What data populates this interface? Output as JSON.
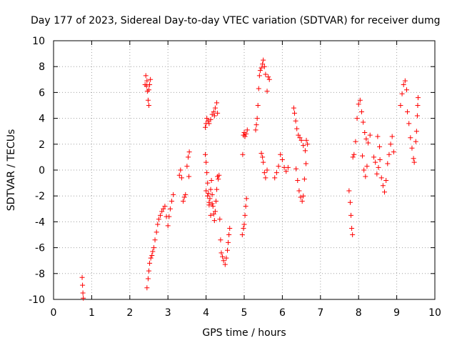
{
  "chart_data": {
    "type": "scatter",
    "title": "Day 177 of 2023, Sidereal Day-to-day VTEC variation (SDTVAR) for receiver dumg",
    "xlabel": "GPS time / hours",
    "ylabel": "SDTVAR / TECUs",
    "xlim": [
      0,
      10
    ],
    "ylim": [
      -10,
      10
    ],
    "xticks": [
      0,
      1,
      2,
      3,
      4,
      5,
      6,
      7,
      8,
      9,
      10
    ],
    "yticks": [
      -10,
      -8,
      -6,
      -4,
      -2,
      0,
      2,
      4,
      6,
      8,
      10
    ],
    "grid": true,
    "marker": "+",
    "marker_color": "#ff0000",
    "series": [
      {
        "name": "SDTVAR",
        "points": [
          [
            0.75,
            -8.3
          ],
          [
            0.76,
            -8.9
          ],
          [
            0.77,
            -9.5
          ],
          [
            0.78,
            -9.9
          ],
          [
            2.4,
            6.6
          ],
          [
            2.42,
            7.3
          ],
          [
            2.44,
            6.5
          ],
          [
            2.46,
            6.1
          ],
          [
            2.48,
            5.4
          ],
          [
            2.5,
            5.0
          ],
          [
            2.52,
            6.6
          ],
          [
            2.54,
            7.0
          ],
          [
            2.5,
            6.2
          ],
          [
            2.45,
            6.9
          ],
          [
            2.45,
            -9.1
          ],
          [
            2.48,
            -8.4
          ],
          [
            2.5,
            -7.8
          ],
          [
            2.52,
            -7.2
          ],
          [
            2.55,
            -6.8
          ],
          [
            2.58,
            -6.6
          ],
          [
            2.6,
            -6.3
          ],
          [
            2.63,
            -6.0
          ],
          [
            2.66,
            -5.4
          ],
          [
            2.7,
            -4.8
          ],
          [
            2.73,
            -4.2
          ],
          [
            2.76,
            -3.8
          ],
          [
            2.8,
            -3.5
          ],
          [
            2.84,
            -3.2
          ],
          [
            2.88,
            -3.0
          ],
          [
            2.92,
            -2.8
          ],
          [
            2.96,
            -3.6
          ],
          [
            3.0,
            -4.3
          ],
          [
            3.03,
            -3.6
          ],
          [
            3.06,
            -3.0
          ],
          [
            3.1,
            -2.4
          ],
          [
            3.14,
            -1.9
          ],
          [
            3.3,
            -0.4
          ],
          [
            3.33,
            0.0
          ],
          [
            3.36,
            -0.6
          ],
          [
            3.4,
            -2.4
          ],
          [
            3.43,
            -2.1
          ],
          [
            3.46,
            -1.9
          ],
          [
            3.5,
            0.3
          ],
          [
            3.53,
            1.0
          ],
          [
            3.56,
            1.4
          ],
          [
            3.55,
            -0.5
          ],
          [
            3.98,
            3.3
          ],
          [
            4.0,
            3.6
          ],
          [
            4.02,
            4.0
          ],
          [
            4.05,
            3.8
          ],
          [
            4.08,
            3.6
          ],
          [
            4.12,
            3.9
          ],
          [
            4.16,
            4.3
          ],
          [
            4.2,
            4.5
          ],
          [
            4.24,
            4.8
          ],
          [
            4.28,
            5.2
          ],
          [
            4.3,
            4.4
          ],
          [
            4.22,
            4.2
          ],
          [
            3.98,
            1.2
          ],
          [
            4.0,
            0.6
          ],
          [
            4.02,
            -0.2
          ],
          [
            4.04,
            -1.0
          ],
          [
            4.06,
            -1.8
          ],
          [
            4.08,
            -2.5
          ],
          [
            4.1,
            -2.2
          ],
          [
            4.12,
            -1.5
          ],
          [
            4.14,
            -0.8
          ],
          [
            4.16,
            -1.9
          ],
          [
            4.18,
            -2.8
          ],
          [
            4.2,
            -3.4
          ],
          [
            4.22,
            -3.9
          ],
          [
            4.24,
            -3.2
          ],
          [
            4.26,
            -2.4
          ],
          [
            4.28,
            -1.5
          ],
          [
            4.3,
            -0.5
          ],
          [
            4.32,
            -0.7
          ],
          [
            4.34,
            -0.4
          ],
          [
            4.0,
            -1.6
          ],
          [
            4.04,
            -2.0
          ],
          [
            4.08,
            -2.7
          ],
          [
            4.12,
            -3.5
          ],
          [
            4.16,
            -2.6
          ],
          [
            4.36,
            -3.8
          ],
          [
            4.38,
            -5.4
          ],
          [
            4.4,
            -6.4
          ],
          [
            4.43,
            -6.7
          ],
          [
            4.46,
            -7.0
          ],
          [
            4.5,
            -7.3
          ],
          [
            4.53,
            -6.8
          ],
          [
            4.56,
            -6.2
          ],
          [
            4.58,
            -5.6
          ],
          [
            4.6,
            -5.0
          ],
          [
            4.62,
            -4.5
          ],
          [
            4.95,
            -5.0
          ],
          [
            4.98,
            -4.5
          ],
          [
            5.0,
            -4.2
          ],
          [
            5.02,
            -3.5
          ],
          [
            5.04,
            -2.8
          ],
          [
            5.06,
            -2.2
          ],
          [
            4.96,
            1.2
          ],
          [
            4.98,
            2.7
          ],
          [
            5.0,
            2.9
          ],
          [
            5.02,
            2.6
          ],
          [
            5.05,
            2.8
          ],
          [
            5.08,
            3.1
          ],
          [
            5.3,
            3.1
          ],
          [
            5.32,
            3.5
          ],
          [
            5.34,
            4.0
          ],
          [
            5.36,
            5.0
          ],
          [
            5.38,
            6.3
          ],
          [
            5.4,
            7.3
          ],
          [
            5.42,
            7.7
          ],
          [
            5.45,
            7.9
          ],
          [
            5.48,
            8.2
          ],
          [
            5.5,
            8.5
          ],
          [
            5.53,
            8.0
          ],
          [
            5.56,
            7.4
          ],
          [
            5.6,
            6.1
          ],
          [
            5.63,
            7.2
          ],
          [
            5.66,
            7.0
          ],
          [
            5.45,
            1.3
          ],
          [
            5.48,
            1.0
          ],
          [
            5.5,
            0.6
          ],
          [
            5.53,
            -0.2
          ],
          [
            5.56,
            -0.6
          ],
          [
            5.6,
            0.0
          ],
          [
            5.8,
            -0.6
          ],
          [
            5.85,
            -0.2
          ],
          [
            5.9,
            0.3
          ],
          [
            5.95,
            1.2
          ],
          [
            6.0,
            0.8
          ],
          [
            6.05,
            0.2
          ],
          [
            6.1,
            -0.1
          ],
          [
            6.15,
            0.2
          ],
          [
            6.3,
            4.8
          ],
          [
            6.32,
            4.4
          ],
          [
            6.35,
            3.8
          ],
          [
            6.38,
            3.2
          ],
          [
            6.42,
            2.7
          ],
          [
            6.46,
            2.5
          ],
          [
            6.5,
            2.3
          ],
          [
            6.55,
            1.9
          ],
          [
            6.6,
            1.5
          ],
          [
            6.63,
            2.3
          ],
          [
            6.66,
            2.0
          ],
          [
            6.36,
            0.1
          ],
          [
            6.4,
            -0.8
          ],
          [
            6.44,
            -1.6
          ],
          [
            6.48,
            -2.1
          ],
          [
            6.52,
            -2.4
          ],
          [
            6.55,
            -2.0
          ],
          [
            6.58,
            -0.7
          ],
          [
            6.62,
            0.5
          ],
          [
            7.75,
            -1.6
          ],
          [
            7.78,
            -2.5
          ],
          [
            7.8,
            -3.5
          ],
          [
            7.82,
            -4.5
          ],
          [
            7.84,
            -5.0
          ],
          [
            7.85,
            1.0
          ],
          [
            7.88,
            1.2
          ],
          [
            7.92,
            2.2
          ],
          [
            7.96,
            4.0
          ],
          [
            8.0,
            5.1
          ],
          [
            8.04,
            5.4
          ],
          [
            8.08,
            4.5
          ],
          [
            8.12,
            3.7
          ],
          [
            8.16,
            2.9
          ],
          [
            8.2,
            2.4
          ],
          [
            8.25,
            2.1
          ],
          [
            8.3,
            2.7
          ],
          [
            8.1,
            1.1
          ],
          [
            8.14,
            0.0
          ],
          [
            8.18,
            -0.5
          ],
          [
            8.22,
            0.3
          ],
          [
            8.4,
            1.0
          ],
          [
            8.44,
            0.6
          ],
          [
            8.48,
            -0.3
          ],
          [
            8.52,
            0.2
          ],
          [
            8.56,
            0.8
          ],
          [
            8.6,
            -0.6
          ],
          [
            8.64,
            -1.2
          ],
          [
            8.68,
            -1.7
          ],
          [
            8.72,
            -0.8
          ],
          [
            8.76,
            0.5
          ],
          [
            8.8,
            1.2
          ],
          [
            8.84,
            2.0
          ],
          [
            8.88,
            2.6
          ],
          [
            8.92,
            1.4
          ],
          [
            8.5,
            2.6
          ],
          [
            8.55,
            1.8
          ],
          [
            9.1,
            5.0
          ],
          [
            9.14,
            5.9
          ],
          [
            9.18,
            6.6
          ],
          [
            9.22,
            6.9
          ],
          [
            9.26,
            6.2
          ],
          [
            9.28,
            4.5
          ],
          [
            9.32,
            3.6
          ],
          [
            9.36,
            2.5
          ],
          [
            9.4,
            1.7
          ],
          [
            9.44,
            0.9
          ],
          [
            9.46,
            0.6
          ],
          [
            9.5,
            2.2
          ],
          [
            9.52,
            3.0
          ],
          [
            9.54,
            4.2
          ],
          [
            9.56,
            5.6
          ],
          [
            9.55,
            5.0
          ]
        ]
      }
    ]
  }
}
